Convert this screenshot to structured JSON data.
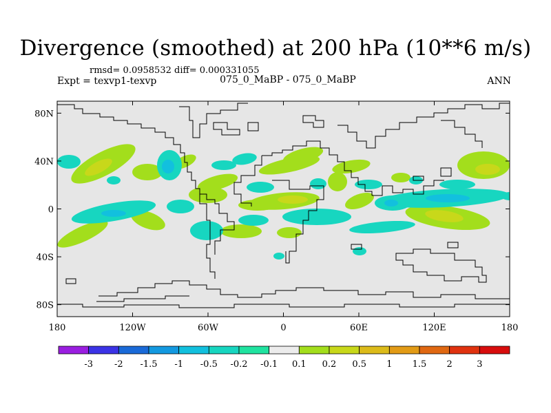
{
  "chart_data": {
    "type": "heatmap",
    "title": "Divergence (smoothed) at 200 hPa (10**6 m/s)",
    "stats_text": "rmsd= 0.0958532 diff= 0.000331055",
    "expt_label": "Expt = texvp1-texvp",
    "center_label": "075_0_MaBP - 075_0_MaBP",
    "season_label": "ANN",
    "x_axis": {
      "range": [
        -180,
        180
      ],
      "ticks": [
        {
          "value": -180,
          "label": "180"
        },
        {
          "value": -120,
          "label": "120W"
        },
        {
          "value": -60,
          "label": "60W"
        },
        {
          "value": 0,
          "label": "0"
        },
        {
          "value": 60,
          "label": "60E"
        },
        {
          "value": 120,
          "label": "120E"
        },
        {
          "value": 180,
          "label": "180"
        }
      ]
    },
    "y_axis": {
      "range": [
        -90,
        90
      ],
      "ticks": [
        {
          "value": 80,
          "label": "80N"
        },
        {
          "value": 40,
          "label": "40N"
        },
        {
          "value": 0,
          "label": "0"
        },
        {
          "value": -40,
          "label": "40S"
        },
        {
          "value": -80,
          "label": "80S"
        }
      ]
    },
    "colorbar": {
      "labels": [
        "-3",
        "-2",
        "-1.5",
        "-1",
        "-0.5",
        "-0.2",
        "-0.1",
        "0.1",
        "0.2",
        "0.5",
        "1",
        "1.5",
        "2",
        "3"
      ],
      "colors": [
        "#9a1ee0",
        "#3b33e6",
        "#1a6ad8",
        "#1399e0",
        "#12c0de",
        "#17d6c0",
        "#20e3a0",
        "#ececec",
        "#a3de1c",
        "#c8d81a",
        "#dcbb1a",
        "#e29b16",
        "#e06812",
        "#e0320f",
        "#d80d0d"
      ]
    },
    "background_color": "#e6e6e6"
  }
}
